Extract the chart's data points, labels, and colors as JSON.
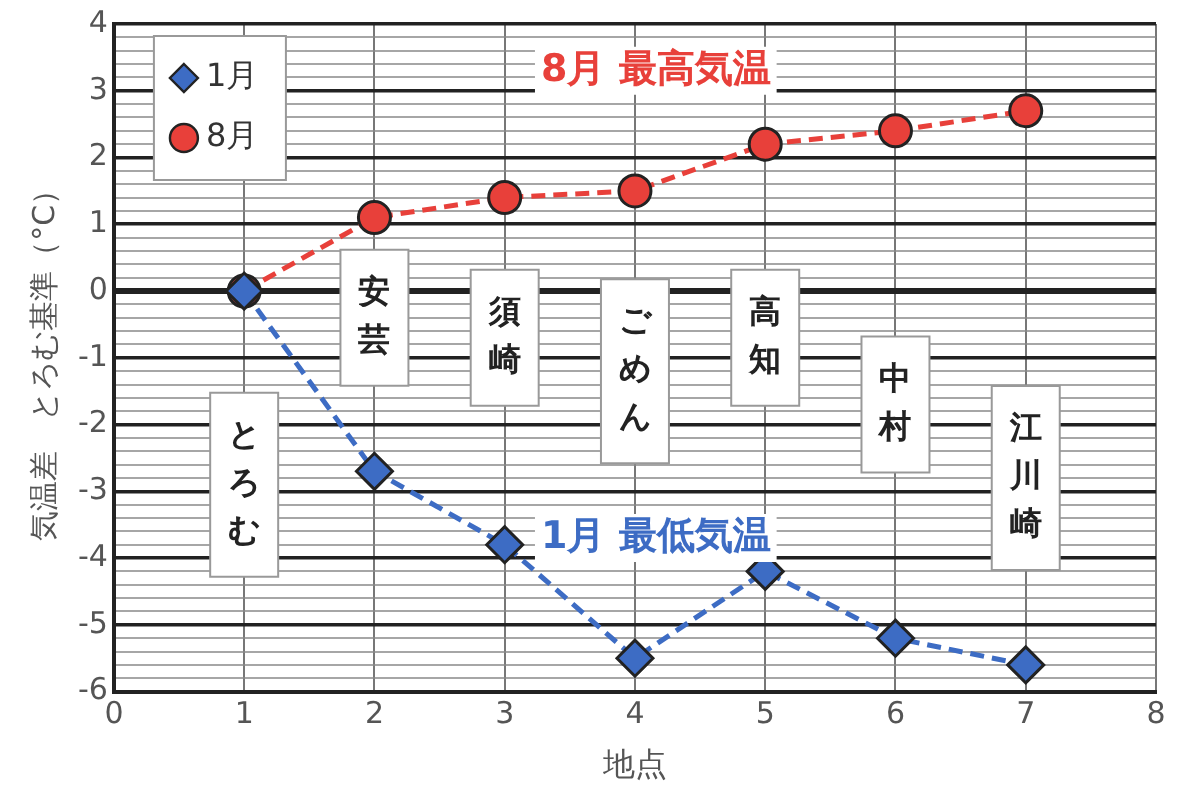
{
  "chart_data": {
    "type": "line",
    "xlabel": "地点",
    "ylabel": "気温差　とろむ基準（°C）",
    "x": [
      1,
      2,
      3,
      4,
      5,
      6,
      7
    ],
    "series": [
      {
        "name": "1月",
        "color": "#3d6cc4",
        "marker": "diamond",
        "values": [
          0,
          -2.7,
          -3.8,
          -5.5,
          -4.2,
          -5.2,
          -5.6
        ]
      },
      {
        "name": "8月",
        "color": "#e8403a",
        "marker": "circle",
        "values": [
          0,
          1.1,
          1.4,
          1.5,
          2.2,
          2.4,
          2.7
        ]
      }
    ],
    "xlim": [
      0,
      8
    ],
    "xticks": [
      0,
      1,
      2,
      3,
      4,
      5,
      6,
      7,
      8
    ],
    "ylim": [
      -6,
      4
    ],
    "yticks": [
      -6,
      {
        "value": -5.8,
        "label": null
      },
      {
        "value": -5.6,
        "label": null
      },
      {
        "value": -5.4,
        "label": null
      },
      {
        "value": -5.2,
        "label": null
      },
      -5,
      {
        "value": -4.8,
        "label": null
      },
      {
        "value": -4.6,
        "label": null
      },
      {
        "value": -4.4,
        "label": null
      },
      {
        "value": -4.2,
        "label": null
      },
      -4,
      {
        "value": -3.8,
        "label": null
      },
      {
        "value": -3.6,
        "label": null
      },
      {
        "value": -3.4,
        "label": null
      },
      {
        "value": -3.2,
        "label": null
      },
      -3,
      {
        "value": -2.8,
        "label": null
      },
      {
        "value": -2.6,
        "label": null
      },
      {
        "value": -2.4,
        "label": null
      },
      {
        "value": -2.2,
        "label": null
      },
      -2,
      {
        "value": -1.8,
        "label": null
      },
      {
        "value": -1.6,
        "label": null
      },
      {
        "value": -1.4,
        "label": null
      },
      {
        "value": -1.2,
        "label": null
      },
      -1,
      {
        "value": -0.8,
        "label": null
      },
      {
        "value": -0.6,
        "label": null
      },
      {
        "value": -0.4,
        "label": null
      },
      {
        "value": -0.2,
        "label": null
      },
      0,
      {
        "value": 0.2,
        "label": null
      },
      {
        "value": 0.4,
        "label": null
      },
      {
        "value": 0.6,
        "label": null
      },
      {
        "value": 0.8,
        "label": null
      },
      1,
      {
        "value": 1.2,
        "label": null
      },
      {
        "value": 1.4,
        "label": null
      },
      {
        "value": 1.6,
        "label": null
      },
      {
        "value": 1.8,
        "label": null
      },
      2,
      {
        "value": 2.2,
        "label": null
      },
      {
        "value": 2.4,
        "label": null
      },
      {
        "value": 2.6,
        "label": null
      },
      {
        "value": 2.8,
        "label": null
      },
      3,
      {
        "value": 3.2,
        "label": null
      },
      {
        "value": 3.4,
        "label": null
      },
      {
        "value": 3.6,
        "label": null
      },
      {
        "value": 3.8,
        "label": null
      },
      4
    ],
    "grid": true,
    "legend": "top left",
    "line_style": "dashed",
    "annotations": [
      "8月 最高気温",
      "1月 最低気温",
      "とろむ",
      "安芸",
      "須崎",
      "ごめん",
      "高知",
      "中村",
      "江川崎"
    ]
  }
}
